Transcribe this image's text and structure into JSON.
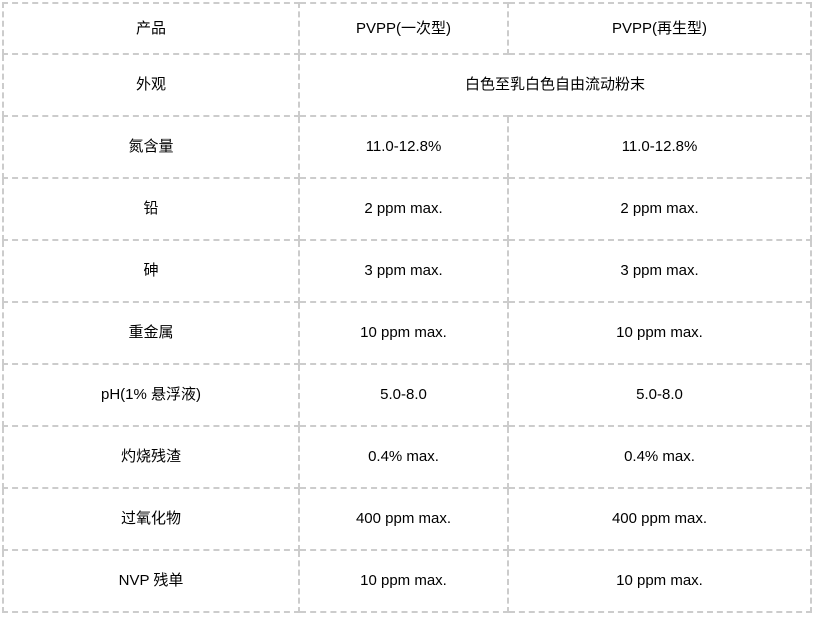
{
  "table": {
    "border_color": "#cccccc",
    "text_color": "#000000",
    "header": {
      "product_label": "产品",
      "col_disposable": "PVPP(一次型)",
      "col_regenerated": "PVPP(再生型)"
    },
    "appearance_row": {
      "label": "外观",
      "value": "白色至乳白色自由流动粉末"
    },
    "rows": [
      {
        "label": "氮含量",
        "disposable": "11.0-12.8%",
        "regenerated": "11.0-12.8%"
      },
      {
        "label": "铅",
        "disposable": "2 ppm max.",
        "regenerated": "2 ppm max."
      },
      {
        "label": "砷",
        "disposable": "3 ppm max.",
        "regenerated": "3 ppm max."
      },
      {
        "label": "重金属",
        "disposable": "10 ppm max.",
        "regenerated": "10 ppm max."
      },
      {
        "label": "pH(1% 悬浮液)",
        "disposable": "5.0-8.0",
        "regenerated": "5.0-8.0"
      },
      {
        "label": "灼烧残渣",
        "disposable": "0.4% max.",
        "regenerated": "0.4% max."
      },
      {
        "label": "过氧化物",
        "disposable": "400 ppm max.",
        "regenerated": "400 ppm max."
      },
      {
        "label": "NVP 残单",
        "disposable": "10 ppm max.",
        "regenerated": "10 ppm max."
      }
    ]
  }
}
